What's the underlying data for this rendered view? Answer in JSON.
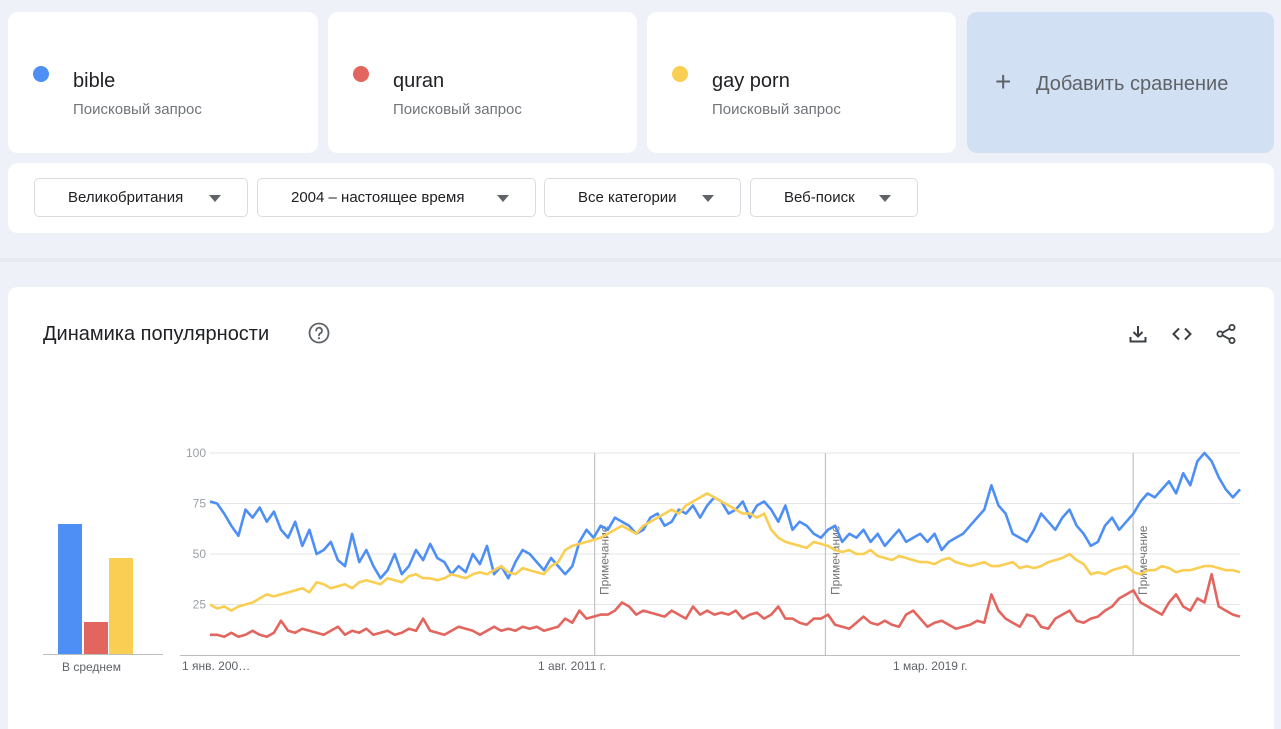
{
  "terms": [
    {
      "name": "bible",
      "type": "Поисковый запрос",
      "color": "#4e8ff6"
    },
    {
      "name": "quran",
      "type": "Поисковый запрос",
      "color": "#e2665f"
    },
    {
      "name": "gay porn",
      "type": "Поисковый запрос",
      "color": "#f9ce52"
    }
  ],
  "add_comparison": {
    "label": "Добавить сравнение"
  },
  "filters": {
    "region": "Великобритания",
    "period": "2004 – настоящее время",
    "category": "Все категории",
    "search_type": "Веб-поиск"
  },
  "trend": {
    "title": "Динамика популярности",
    "icons": [
      "help-icon",
      "download-icon",
      "embed-icon",
      "share-icon"
    ],
    "average_label": "В среднем",
    "averages": {
      "bible": 65,
      "quran": 16,
      "gay porn": 48
    },
    "note_label": "Примечание"
  },
  "chart_data": {
    "type": "line",
    "ylim": [
      0,
      100
    ],
    "y_ticks": [
      100,
      75,
      50,
      25
    ],
    "x_tick_labels": [
      "1 янв. 200…",
      "1 авг. 2011 г.",
      "1 мар. 2019 г."
    ],
    "x_range": [
      "2004-01",
      "2024-02"
    ],
    "grid": true,
    "notes_at": [
      "2011-07",
      "2016-01",
      "2022-01"
    ],
    "series": [
      {
        "name": "bible",
        "color": "#4e8ff6",
        "values": [
          76,
          75,
          70,
          64,
          59,
          72,
          68,
          73,
          66,
          71,
          62,
          58,
          66,
          54,
          62,
          50,
          52,
          56,
          47,
          44,
          60,
          46,
          52,
          44,
          38,
          42,
          50,
          40,
          44,
          52,
          47,
          55,
          48,
          46,
          40,
          44,
          41,
          50,
          45,
          54,
          40,
          44,
          38,
          46,
          52,
          50,
          46,
          42,
          48,
          44,
          40,
          44,
          56,
          62,
          58,
          64,
          62,
          68,
          66,
          64,
          60,
          62,
          68,
          70,
          64,
          66,
          72,
          70,
          74,
          68,
          74,
          78,
          76,
          70,
          72,
          76,
          68,
          74,
          76,
          72,
          66,
          74,
          62,
          66,
          64,
          60,
          58,
          62,
          64,
          56,
          60,
          58,
          62,
          56,
          60,
          54,
          58,
          62,
          56,
          58,
          60,
          56,
          60,
          52,
          56,
          58,
          60,
          64,
          68,
          72,
          84,
          74,
          70,
          60,
          58,
          56,
          62,
          70,
          66,
          62,
          68,
          72,
          64,
          60,
          54,
          56,
          64,
          68,
          62,
          66,
          70,
          76,
          80,
          78,
          82,
          86,
          80,
          90,
          84,
          96,
          100,
          96,
          88,
          82,
          78,
          82
        ]
      },
      {
        "name": "quran",
        "color": "#e2665f",
        "values": [
          10,
          10,
          9,
          11,
          9,
          10,
          12,
          10,
          9,
          11,
          17,
          12,
          11,
          13,
          12,
          11,
          10,
          12,
          14,
          10,
          12,
          11,
          13,
          10,
          11,
          12,
          10,
          11,
          13,
          12,
          18,
          12,
          11,
          10,
          12,
          14,
          13,
          12,
          10,
          12,
          14,
          12,
          13,
          12,
          14,
          13,
          14,
          12,
          13,
          14,
          18,
          16,
          22,
          18,
          19,
          20,
          20,
          22,
          26,
          24,
          20,
          22,
          21,
          20,
          19,
          22,
          20,
          18,
          24,
          20,
          22,
          20,
          21,
          20,
          22,
          18,
          20,
          21,
          18,
          20,
          24,
          18,
          18,
          16,
          15,
          18,
          18,
          20,
          15,
          14,
          13,
          16,
          19,
          16,
          15,
          17,
          15,
          14,
          20,
          22,
          18,
          14,
          16,
          17,
          15,
          13,
          14,
          15,
          17,
          16,
          30,
          22,
          18,
          16,
          14,
          20,
          19,
          14,
          13,
          18,
          20,
          22,
          17,
          16,
          18,
          19,
          22,
          24,
          28,
          30,
          32,
          26,
          24,
          22,
          20,
          26,
          30,
          24,
          22,
          28,
          26,
          40,
          24,
          22,
          20,
          19
        ]
      },
      {
        "name": "gay porn",
        "color": "#f9ce52",
        "values": [
          25,
          23,
          24,
          22,
          24,
          25,
          26,
          28,
          30,
          29,
          30,
          31,
          32,
          33,
          31,
          36,
          35,
          33,
          34,
          35,
          33,
          36,
          37,
          36,
          35,
          38,
          37,
          36,
          39,
          40,
          38,
          38,
          37,
          38,
          40,
          39,
          38,
          40,
          41,
          40,
          42,
          44,
          41,
          40,
          43,
          42,
          41,
          40,
          44,
          46,
          52,
          54,
          55,
          56,
          57,
          58,
          60,
          62,
          64,
          62,
          60,
          64,
          66,
          68,
          70,
          72,
          70,
          74,
          76,
          78,
          80,
          78,
          76,
          74,
          72,
          70,
          70,
          68,
          70,
          62,
          58,
          56,
          55,
          54,
          53,
          56,
          55,
          54,
          52,
          51,
          52,
          50,
          50,
          52,
          49,
          48,
          47,
          49,
          48,
          47,
          46,
          46,
          45,
          47,
          48,
          46,
          45,
          44,
          45,
          46,
          44,
          44,
          45,
          46,
          43,
          44,
          43,
          44,
          46,
          47,
          48,
          50,
          47,
          45,
          40,
          41,
          40,
          42,
          43,
          44,
          41,
          40,
          42,
          42,
          44,
          43,
          41,
          42,
          42,
          43,
          44,
          44,
          43,
          42,
          42,
          41
        ]
      }
    ]
  }
}
